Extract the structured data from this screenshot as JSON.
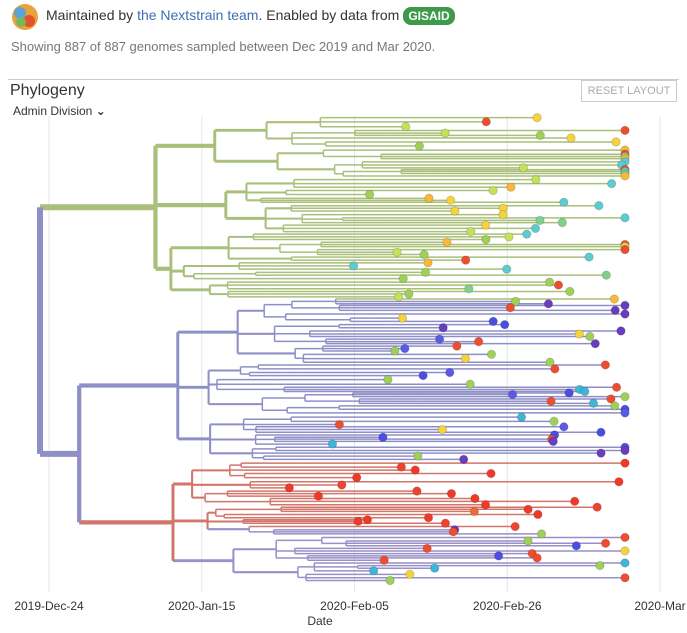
{
  "header": {
    "prefix": "Maintained by",
    "team_link": "the Nextstrain team",
    "enabled_text": ". Enabled by data from",
    "gisaid": "GISAID"
  },
  "subtitle": "Showing 887 of 887 genomes sampled between Dec 2019 and Mar 2020.",
  "panel": {
    "title": "Phylogeny",
    "color_by": "Admin Division",
    "reset_button": "RESET LAYOUT"
  },
  "axis": {
    "ticks": [
      "2019-Dec-24",
      "2020-Jan-15",
      "2020-Feb-05",
      "2020-Feb-26",
      "2020-Mar"
    ],
    "label": "Date"
  }
}
